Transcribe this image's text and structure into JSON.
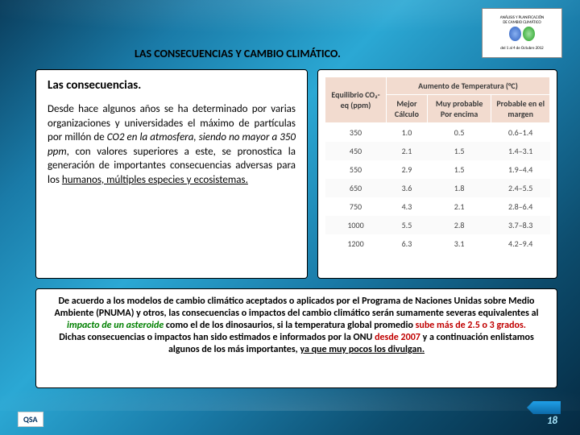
{
  "colors": {
    "bg_from": "#0a3d5c",
    "bg_to": "#052a42",
    "th_bg": "#f2dbcf",
    "red": "#c00000",
    "green": "#008000"
  },
  "badge": {
    "line1": "ANÁLISIS Y PLANIFICACIÓN",
    "line2": "DE CAMBIO CLIMÁTICO",
    "line3": "del 1 al 4 de Octubre 2012",
    "globe1_color": "#3060c0",
    "globe2_color": "#20a020"
  },
  "title": "LAS CONSECUENCIAS Y CAMBIO CLIMÁTICO.",
  "left": {
    "subtitle": "Las consecuencias.",
    "p1a": "Desde hace algunos años se ha determinado por varias organizaciones y universidades el máximo de partículas por millón de ",
    "p1b": "CO2 en la atmosfera, siendo no mayor a 350 ppm",
    "p1c": ", con valores superiores a este, se pronostica la generación de importantes consecuencias adversas para los ",
    "p1d": "humanos, múltiples especies y ecosistemas."
  },
  "table": {
    "headers": [
      "Equilibrio CO₂-eq (ppm)",
      "Aumento de Temperatura (°C)"
    ],
    "subheaders": [
      "",
      "Mejor Cálculo",
      "Muy probable Por encima",
      "Probable en el margen"
    ],
    "rows": [
      [
        "350",
        "1.0",
        "0.5",
        "0.6–1.4"
      ],
      [
        "450",
        "2.1",
        "1.5",
        "1.4–3.1"
      ],
      [
        "550",
        "2.9",
        "1.5",
        "1.9–4.4"
      ],
      [
        "650",
        "3.6",
        "1.8",
        "2.4–5.5"
      ],
      [
        "750",
        "4.3",
        "2.1",
        "2.8–6.4"
      ],
      [
        "1000",
        "5.5",
        "2.8",
        "3.7–8.3"
      ],
      [
        "1200",
        "6.3",
        "3.1",
        "4.2–9.4"
      ]
    ]
  },
  "bottom": {
    "p1a": "De acuerdo a los modelos de cambio climático aceptados o aplicados por el Programa de Naciones Unidas sobre Medio Ambiente (PNUMA) y otros, las consecuencias o impactos del cambio climático serán sumamente severas equivalentes al ",
    "p1b": "impacto de un asteroide",
    "p1c": " como el de los dinosaurios, si la temperatura global promedio ",
    "p1d": "sube más de 2.5 o 3 grados.",
    "p2a": "Dichas consecuencias o impactos han sido estimados e informados por la ONU ",
    "p2b": "desde 2007",
    "p2c": " y a continuación enlistamos algunos de los más importantes, ",
    "p2d": "ya que muy pocos los divulgan."
  },
  "footer": {
    "qsa": "QSA",
    "pagenum": "18"
  }
}
